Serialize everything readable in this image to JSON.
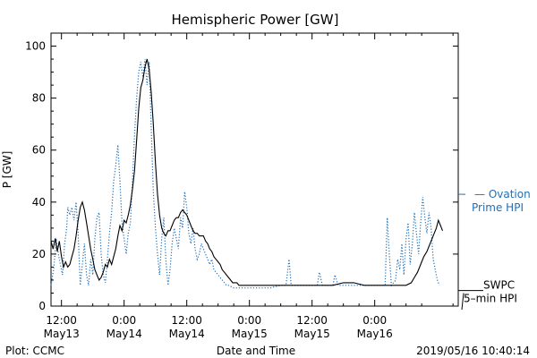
{
  "chart_data": {
    "type": "line",
    "title": "Hemispheric Power [GW]",
    "xlabel": "Date and Time",
    "ylabel": "P [GW]",
    "ylim": [
      0,
      105
    ],
    "yticks": [
      0,
      20,
      40,
      60,
      80,
      100
    ],
    "x_unit": "hours since 2019-05-13 00:00 UT",
    "xlim": [
      10,
      88
    ],
    "xticks": [
      {
        "x": 12,
        "line1": "12:00",
        "line2": "May13"
      },
      {
        "x": 24,
        "line1": "0:00",
        "line2": "May14"
      },
      {
        "x": 36,
        "line1": "12:00",
        "line2": "May14"
      },
      {
        "x": 48,
        "line1": "0:00",
        "line2": "May15"
      },
      {
        "x": 60,
        "line1": "12:00",
        "line2": "May15"
      },
      {
        "x": 72,
        "line1": "0:00",
        "line2": "May16"
      }
    ],
    "grid": false,
    "series": [
      {
        "name": "SWPC 5-min HPI",
        "label_lines": [
          "SWPC",
          "5–min HPI"
        ],
        "style": "solid",
        "color": "#000000",
        "points": [
          [
            10.0,
            25
          ],
          [
            10.4,
            22
          ],
          [
            10.8,
            26
          ],
          [
            11.2,
            21
          ],
          [
            11.6,
            25
          ],
          [
            12.0,
            19
          ],
          [
            12.4,
            15
          ],
          [
            12.8,
            17
          ],
          [
            13.2,
            15
          ],
          [
            13.6,
            16
          ],
          [
            14.0,
            19
          ],
          [
            14.4,
            22
          ],
          [
            14.8,
            27
          ],
          [
            15.2,
            33
          ],
          [
            15.6,
            38
          ],
          [
            16.0,
            40
          ],
          [
            16.4,
            37
          ],
          [
            16.8,
            32
          ],
          [
            17.2,
            27
          ],
          [
            17.6,
            22
          ],
          [
            18.0,
            18
          ],
          [
            18.4,
            14
          ],
          [
            18.8,
            12
          ],
          [
            19.2,
            10
          ],
          [
            19.6,
            11
          ],
          [
            20.0,
            13
          ],
          [
            20.4,
            16
          ],
          [
            20.8,
            15
          ],
          [
            21.2,
            18
          ],
          [
            21.6,
            16
          ],
          [
            22.0,
            19
          ],
          [
            22.4,
            22
          ],
          [
            22.8,
            27
          ],
          [
            23.2,
            31
          ],
          [
            23.6,
            29
          ],
          [
            24.0,
            33
          ],
          [
            24.4,
            32
          ],
          [
            24.8,
            35
          ],
          [
            25.2,
            39
          ],
          [
            25.6,
            45
          ],
          [
            26.0,
            52
          ],
          [
            26.4,
            64
          ],
          [
            26.8,
            76
          ],
          [
            27.2,
            84
          ],
          [
            27.6,
            87
          ],
          [
            28.0,
            92
          ],
          [
            28.4,
            95
          ],
          [
            28.8,
            91
          ],
          [
            29.2,
            82
          ],
          [
            29.6,
            70
          ],
          [
            30.0,
            55
          ],
          [
            30.4,
            43
          ],
          [
            30.8,
            35
          ],
          [
            31.2,
            30
          ],
          [
            31.6,
            28
          ],
          [
            32.0,
            27
          ],
          [
            32.4,
            29
          ],
          [
            32.8,
            29
          ],
          [
            33.2,
            31
          ],
          [
            33.6,
            33
          ],
          [
            34.0,
            34
          ],
          [
            34.4,
            34
          ],
          [
            34.8,
            36
          ],
          [
            35.2,
            37
          ],
          [
            35.6,
            36
          ],
          [
            36.0,
            35
          ],
          [
            36.4,
            33
          ],
          [
            36.8,
            31
          ],
          [
            37.2,
            29
          ],
          [
            37.6,
            28
          ],
          [
            38.0,
            28
          ],
          [
            38.4,
            27
          ],
          [
            38.8,
            27
          ],
          [
            39.2,
            27
          ],
          [
            39.6,
            25
          ],
          [
            40.0,
            24
          ],
          [
            40.4,
            22
          ],
          [
            40.8,
            21
          ],
          [
            41.2,
            19
          ],
          [
            41.6,
            18
          ],
          [
            42.0,
            17
          ],
          [
            42.4,
            16
          ],
          [
            42.8,
            14
          ],
          [
            43.2,
            13
          ],
          [
            43.6,
            12
          ],
          [
            44.0,
            11
          ],
          [
            44.4,
            10
          ],
          [
            44.8,
            9
          ],
          [
            45.2,
            9
          ],
          [
            45.6,
            9
          ],
          [
            46.0,
            8
          ],
          [
            47.0,
            8
          ],
          [
            48.0,
            8
          ],
          [
            50.0,
            8
          ],
          [
            52.0,
            8
          ],
          [
            54.0,
            8
          ],
          [
            56.0,
            8
          ],
          [
            58.0,
            8
          ],
          [
            60.0,
            8
          ],
          [
            62.0,
            8
          ],
          [
            64.0,
            8
          ],
          [
            66.0,
            9
          ],
          [
            68.0,
            9
          ],
          [
            70.0,
            8
          ],
          [
            72.0,
            8
          ],
          [
            74.0,
            8
          ],
          [
            76.0,
            8
          ],
          [
            78.0,
            8
          ],
          [
            79.0,
            9
          ],
          [
            79.6,
            11
          ],
          [
            80.2,
            13
          ],
          [
            80.8,
            16
          ],
          [
            81.4,
            19
          ],
          [
            82.0,
            21
          ],
          [
            82.6,
            24
          ],
          [
            83.2,
            27
          ],
          [
            83.8,
            30
          ],
          [
            84.2,
            33
          ],
          [
            84.6,
            31
          ],
          [
            85.0,
            29
          ]
        ]
      },
      {
        "name": "Ovation Prime HPI",
        "label_lines": [
          "— Ovation",
          "Prime HPI"
        ],
        "style": "dotted",
        "color": "#1f6fb8",
        "points": [
          [
            10.0,
            8
          ],
          [
            10.5,
            14
          ],
          [
            11.0,
            26
          ],
          [
            11.4,
            20
          ],
          [
            11.8,
            16
          ],
          [
            12.2,
            12
          ],
          [
            12.6,
            24
          ],
          [
            13.0,
            30
          ],
          [
            13.2,
            38
          ],
          [
            13.6,
            35
          ],
          [
            14.0,
            38
          ],
          [
            14.4,
            33
          ],
          [
            14.8,
            40
          ],
          [
            15.2,
            28
          ],
          [
            15.6,
            8
          ],
          [
            16.0,
            16
          ],
          [
            16.4,
            24
          ],
          [
            16.8,
            12
          ],
          [
            17.2,
            8
          ],
          [
            17.6,
            18
          ],
          [
            18.0,
            12
          ],
          [
            18.4,
            26
          ],
          [
            18.8,
            34
          ],
          [
            19.2,
            36
          ],
          [
            19.6,
            20
          ],
          [
            20.0,
            12
          ],
          [
            20.4,
            9
          ],
          [
            20.8,
            18
          ],
          [
            21.2,
            28
          ],
          [
            21.6,
            36
          ],
          [
            22.0,
            48
          ],
          [
            22.4,
            54
          ],
          [
            22.8,
            62
          ],
          [
            23.2,
            48
          ],
          [
            23.6,
            32
          ],
          [
            24.0,
            26
          ],
          [
            24.4,
            20
          ],
          [
            24.8,
            28
          ],
          [
            25.2,
            32
          ],
          [
            25.6,
            48
          ],
          [
            26.0,
            66
          ],
          [
            26.4,
            80
          ],
          [
            26.8,
            90
          ],
          [
            27.2,
            94
          ],
          [
            27.6,
            88
          ],
          [
            28.0,
            95
          ],
          [
            28.4,
            85
          ],
          [
            28.8,
            94
          ],
          [
            29.2,
            68
          ],
          [
            29.6,
            44
          ],
          [
            30.0,
            30
          ],
          [
            30.4,
            20
          ],
          [
            30.8,
            12
          ],
          [
            31.2,
            26
          ],
          [
            31.6,
            34
          ],
          [
            32.0,
            18
          ],
          [
            32.4,
            8
          ],
          [
            32.8,
            14
          ],
          [
            33.2,
            24
          ],
          [
            33.6,
            30
          ],
          [
            34.0,
            26
          ],
          [
            34.4,
            22
          ],
          [
            34.8,
            34
          ],
          [
            35.2,
            30
          ],
          [
            35.6,
            44
          ],
          [
            36.0,
            38
          ],
          [
            36.4,
            28
          ],
          [
            36.8,
            24
          ],
          [
            37.2,
            30
          ],
          [
            37.6,
            22
          ],
          [
            38.0,
            18
          ],
          [
            38.4,
            20
          ],
          [
            38.8,
            24
          ],
          [
            39.2,
            22
          ],
          [
            39.6,
            20
          ],
          [
            40.0,
            18
          ],
          [
            40.4,
            16
          ],
          [
            40.8,
            18
          ],
          [
            41.2,
            14
          ],
          [
            41.6,
            13
          ],
          [
            42.0,
            12
          ],
          [
            42.4,
            11
          ],
          [
            42.8,
            10
          ],
          [
            43.2,
            9
          ],
          [
            43.6,
            8
          ],
          [
            44.0,
            8
          ],
          [
            45.0,
            7
          ],
          [
            46.0,
            7
          ],
          [
            48.0,
            7
          ],
          [
            50.0,
            7
          ],
          [
            52.0,
            7
          ],
          [
            54.0,
            8
          ],
          [
            55.0,
            8
          ],
          [
            55.6,
            18
          ],
          [
            56.0,
            8
          ],
          [
            58.0,
            8
          ],
          [
            60.0,
            8
          ],
          [
            61.0,
            8
          ],
          [
            61.4,
            13
          ],
          [
            62.0,
            8
          ],
          [
            64.0,
            8
          ],
          [
            64.4,
            12
          ],
          [
            65.0,
            8
          ],
          [
            68.0,
            8
          ],
          [
            70.0,
            8
          ],
          [
            72.0,
            8
          ],
          [
            74.0,
            8
          ],
          [
            74.4,
            34
          ],
          [
            74.8,
            20
          ],
          [
            75.2,
            8
          ],
          [
            76.0,
            10
          ],
          [
            76.4,
            18
          ],
          [
            76.8,
            14
          ],
          [
            77.2,
            24
          ],
          [
            77.6,
            12
          ],
          [
            78.0,
            26
          ],
          [
            78.4,
            32
          ],
          [
            78.8,
            16
          ],
          [
            79.2,
            24
          ],
          [
            79.6,
            36
          ],
          [
            80.0,
            28
          ],
          [
            80.4,
            20
          ],
          [
            80.8,
            32
          ],
          [
            81.2,
            42
          ],
          [
            81.6,
            34
          ],
          [
            82.0,
            28
          ],
          [
            82.4,
            36
          ],
          [
            82.8,
            30
          ],
          [
            83.2,
            18
          ],
          [
            83.6,
            14
          ],
          [
            84.0,
            10
          ],
          [
            84.4,
            8
          ]
        ]
      }
    ],
    "series_labels_placement": "right",
    "footer": {
      "left": "Plot: CCMC",
      "center": "Date and Time",
      "right": "2019/05/16 10:40:14"
    }
  },
  "colors": {
    "ovation": "#1f6fb8",
    "swpc": "#000000",
    "axis": "#000000"
  }
}
